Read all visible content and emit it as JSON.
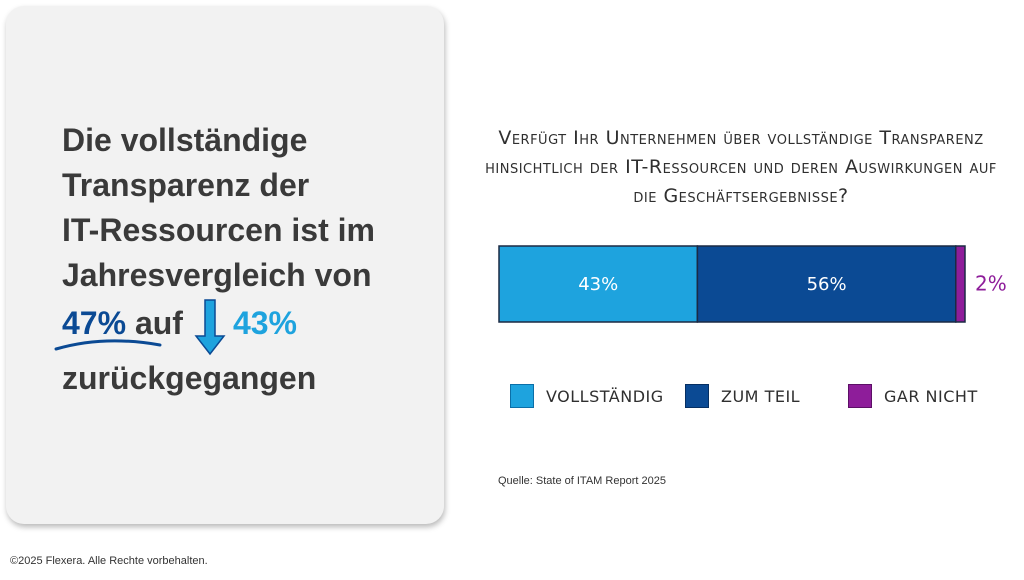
{
  "card": {
    "line1": "Die vollständige",
    "line2": "Transparenz der",
    "line3": "IT-Ressourcen ist im",
    "line4": "Jahresvergleich von",
    "old_value": "47%",
    "connector": "auf",
    "new_value": "43%",
    "line6": "zurückgegangen",
    "colors": {
      "old": "#0b4a94",
      "new": "#1ea3de",
      "arrow": "#1ea3de"
    },
    "arrow_icon": "down-arrow-icon"
  },
  "chart_data": {
    "type": "bar",
    "orientation": "horizontal-stacked",
    "title": "Verfügt Ihr Unternehmen über vollständige Transparenz hinsichtlich der IT-Ressourcen und deren Auswirkungen auf die Geschäftsergebnisse?",
    "series": [
      {
        "name": "Vollständig",
        "value": 43,
        "label": "43%",
        "color": "#1ea3de"
      },
      {
        "name": "Zum Teil",
        "value": 56,
        "label": "56%",
        "color": "#0b4a94"
      },
      {
        "name": "Gar nicht",
        "value": 2,
        "label": "2%",
        "color": "#8e1d9a"
      }
    ],
    "legend_position": "bottom",
    "grid": false
  },
  "source": "Quelle: State of ITAM Report 2025",
  "footer": "©2025 Flexera. Alle Rechte vorbehalten."
}
